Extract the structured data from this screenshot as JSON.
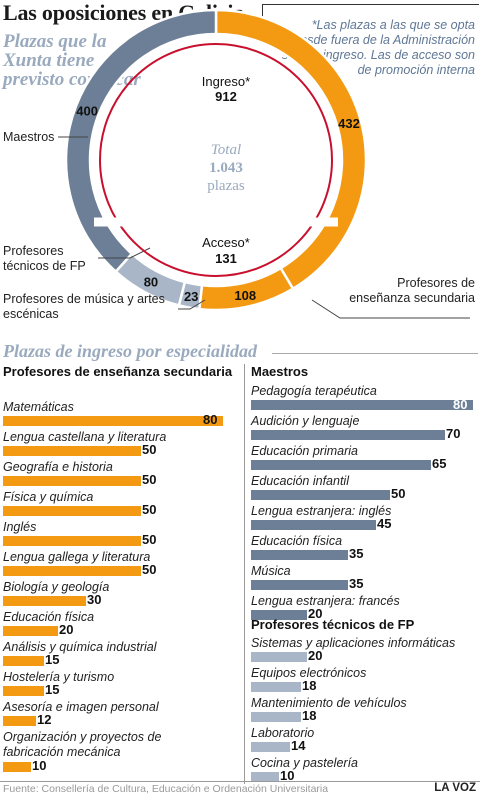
{
  "header": {
    "title": "Las oposiciones en Galicia"
  },
  "donut": {
    "subtitle": "Plazas que la Xunta tiene previsto convocar",
    "note": "*Las plazas a las que se opta desde fuera de la Administración son de ingreso. Las de acceso son de promoción interna",
    "total_label": "Total",
    "total_value": "1.043",
    "total_unit": "plazas",
    "ingreso_label": "Ingreso*",
    "ingreso_value": "912",
    "acceso_label": "Acceso*",
    "acceso_value": "131",
    "segment_labels": {
      "maestros": "Maestros",
      "fp": "Profesores técnicos de FP",
      "musica": "Profesores de música y artes escénicas",
      "secundaria": "Profesores de enseñanza secundaria"
    },
    "colors": {
      "maestros": "#6d7f97",
      "secundaria": "#f39a12",
      "light": "#a8b6c8",
      "ring": "#c8102e",
      "divider": "#ffffff"
    }
  },
  "chart_data": [
    {
      "type": "pie",
      "values_order": [
        "Profesores de enseñanza secundaria",
        "Profesores de enseñanza secundaria (acceso)",
        "Profesores de música y artes escénicas",
        "Profesores técnicos de FP",
        "Maestros"
      ],
      "slices": [
        {
          "label": "Profesores de enseñanza secundaria",
          "value": 432,
          "color": "#f39a12"
        },
        {
          "label": "Profesores de enseñanza secundaria",
          "value": 108,
          "color": "#f39a12"
        },
        {
          "label": "Profesores de música y artes escénicas",
          "value": 23,
          "color": "#a8b6c8"
        },
        {
          "label": "Profesores técnicos de FP",
          "value": 80,
          "color": "#a8b6c8"
        },
        {
          "label": "Maestros",
          "value": 400,
          "color": "#6d7f97"
        }
      ],
      "total": 1043,
      "ingreso": 912,
      "acceso": 131,
      "title": "Plazas que la Xunta tiene previsto convocar"
    },
    {
      "type": "bar",
      "title": "Plazas de ingreso por especialidad",
      "xlim": [
        0,
        80
      ],
      "groups": [
        {
          "name": "Profesores de enseñanza secundaria",
          "color": "#f39a12",
          "categories": [
            "Matemáticas",
            "Lengua castellana y literatura",
            "Geografía e historia",
            "Física y química",
            "Inglés",
            "Lengua gallega y literatura",
            "Biología y geología",
            "Educación física",
            "Análisis y química industrial",
            "Hostelería y turismo",
            "Asesoría e imagen personal",
            "Organización y proyectos de fabricación mecánica"
          ],
          "values": [
            80,
            50,
            50,
            50,
            50,
            50,
            30,
            20,
            15,
            15,
            12,
            10
          ]
        },
        {
          "name": "Maestros",
          "color": "#6d7f97",
          "categories": [
            "Pedagogía terapéutica",
            "Audición y lenguaje",
            "Educación primaria",
            "Educación infantil",
            "Lengua estranjera: inglés",
            "Educación física",
            "Música",
            "Lengua estranjera: francés"
          ],
          "values": [
            80,
            70,
            65,
            50,
            45,
            35,
            35,
            20
          ]
        },
        {
          "name": "Profesores técnicos de FP",
          "color": "#a8b6c8",
          "categories": [
            "Sistemas y aplicaciones informáticas",
            "Equipos electrónicos",
            "Mantenimiento de vehículos",
            "Laboratorio",
            "Cocina y pastelería"
          ],
          "values": [
            20,
            18,
            18,
            14,
            10
          ]
        }
      ]
    }
  ],
  "bars_section": {
    "title": "Plazas de ingreso por especialidad"
  },
  "footer": {
    "source": "Fuente: Consellería de Cultura, Educación e Ordenación Universitaria",
    "credit": "LA VOZ"
  }
}
